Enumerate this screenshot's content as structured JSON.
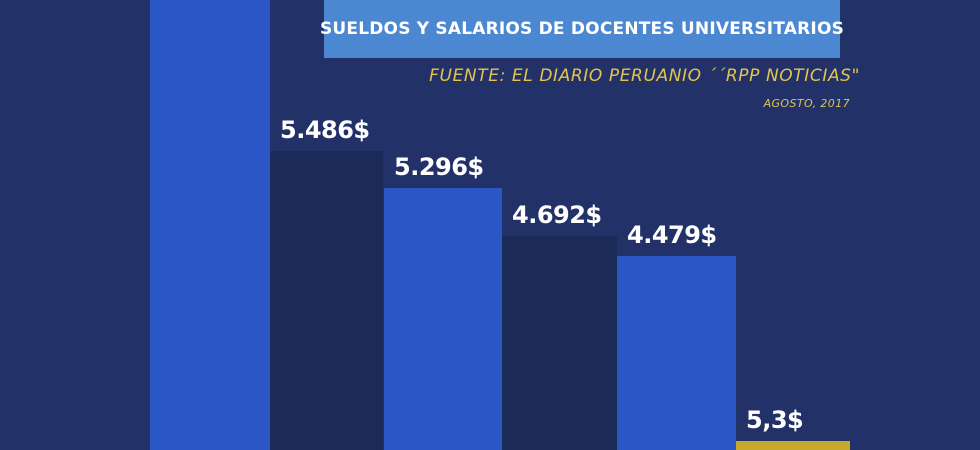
{
  "header": {
    "title": "SUELDOS Y SALARIOS DE DOCENTES UNIVERSITARIOS",
    "source": "FUENTE:  EL DIARIO PERUANIO ´´RPP NOTICIAS\"",
    "date": "AGOSTO, 2017"
  },
  "colors": {
    "background": "#223269",
    "bright_bar": "#2b56c6",
    "dark_bar": "#1b2a57",
    "highlight_bar": "#c8a92c",
    "title_box": "#4c87d2",
    "source_text": "#e2c44f"
  },
  "chart_data": {
    "type": "bar",
    "values": [
      null,
      5.486,
      5.296,
      4.692,
      4.479,
      5.3
    ],
    "data_labels": [
      "",
      "5.486$",
      "5.296$",
      "4.692$",
      "4.479$",
      "5,3$"
    ],
    "bar_colors": [
      "#2b56c6",
      "#1b2a57",
      "#2b56c6",
      "#1b2a57",
      "#2b56c6",
      "#c8a92c"
    ],
    "units": "$",
    "legend": "none",
    "grid": false
  }
}
